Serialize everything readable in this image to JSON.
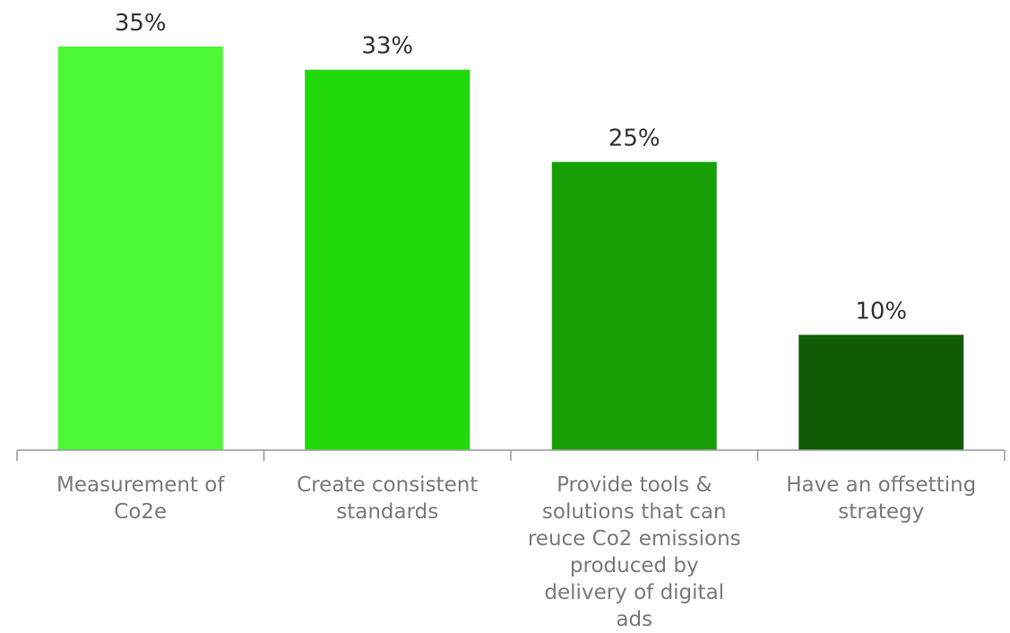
{
  "chart_data": {
    "type": "bar",
    "title": "",
    "xlabel": "",
    "ylabel": "",
    "ylim": [
      0,
      35
    ],
    "grid": false,
    "legend": "none",
    "categories": [
      "Measurement of Co2e",
      "Create consistent standards",
      "Provide tools & solutions that can reuce Co2 emissions produced by delivery of digital ads",
      "Have an offsetting strategy"
    ],
    "values": [
      35,
      33,
      25,
      10
    ],
    "data_labels": [
      "35%",
      "33%",
      "25%",
      "10%"
    ],
    "colors": [
      "#4cf934",
      "#22d909",
      "#189f06",
      "#0f5d03"
    ],
    "value_label_color": "#333333",
    "category_label_color": "#7a7a7a",
    "axis_color": "#9a9a9a"
  }
}
